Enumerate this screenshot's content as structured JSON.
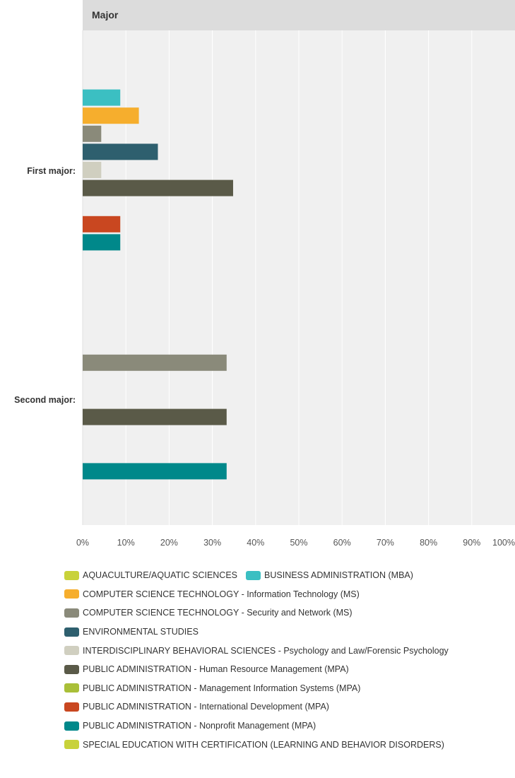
{
  "chart_data": {
    "type": "bar",
    "orientation": "horizontal",
    "title": "Major",
    "categories": [
      "First major:",
      "Second major:"
    ],
    "x_ticks": [
      "0%",
      "10%",
      "20%",
      "30%",
      "40%",
      "50%",
      "60%",
      "70%",
      "80%",
      "90%",
      "100%"
    ],
    "xlim": [
      0,
      100
    ],
    "grid": true,
    "legend_position": "bottom",
    "series": [
      {
        "name": "AQUACULTURE/AQUATIC SCIENCES",
        "color": "#c8d23a",
        "values": [
          0,
          0
        ]
      },
      {
        "name": "BUSINESS ADMINISTRATION (MBA)",
        "color": "#3bbfc2",
        "values": [
          8.7,
          0
        ]
      },
      {
        "name": "COMPUTER SCIENCE TECHNOLOGY - Information Technology (MS)",
        "color": "#f6ae2d",
        "values": [
          13.0,
          0
        ]
      },
      {
        "name": "COMPUTER SCIENCE TECHNOLOGY - Security and Network (MS)",
        "color": "#8a8a7a",
        "values": [
          4.3,
          33.3
        ]
      },
      {
        "name": "ENVIRONMENTAL STUDIES",
        "color": "#2e5f6e",
        "values": [
          17.4,
          0
        ]
      },
      {
        "name": "INTERDISCIPLINARY BEHAVIORAL SCIENCES - Psychology and Law/Forensic Psychology",
        "color": "#d0cfc0",
        "values": [
          4.3,
          0
        ]
      },
      {
        "name": "PUBLIC ADMINISTRATION - Human Resource Management (MPA)",
        "color": "#5a5a48",
        "values": [
          34.8,
          33.3
        ]
      },
      {
        "name": "PUBLIC ADMINISTRATION - Management Information Systems (MPA)",
        "color": "#a9bf38",
        "values": [
          0,
          0
        ]
      },
      {
        "name": "PUBLIC ADMINISTRATION - International Development (MPA)",
        "color": "#c94720",
        "values": [
          8.7,
          0
        ]
      },
      {
        "name": "PUBLIC ADMINISTRATION - Nonprofit Management (MPA)",
        "color": "#00888a",
        "values": [
          8.7,
          33.3
        ]
      },
      {
        "name": "SPECIAL EDUCATION WITH CERTIFICATION (LEARNING AND BEHAVIOR DISORDERS)",
        "color": "#c8d23a",
        "values": [
          0,
          0
        ]
      }
    ]
  }
}
